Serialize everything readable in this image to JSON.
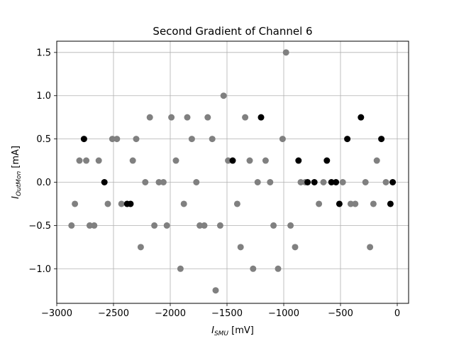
{
  "chart_data": {
    "type": "scatter",
    "title": "Second Gradient of Channel 6",
    "xlabel": {
      "main": "I",
      "sub": "SMU",
      "unit": " [mV]"
    },
    "ylabel": {
      "main": "I",
      "sub": "OutMon",
      "unit": " [mA]"
    },
    "xlim": [
      -3000,
      100
    ],
    "ylim": [
      -1.4,
      1.63
    ],
    "xticks": [
      -3000,
      -2500,
      -2000,
      -1500,
      -1000,
      -500,
      0
    ],
    "xtick_labels": [
      "−3000",
      "−2500",
      "−2000",
      "−1500",
      "−1000",
      "−500",
      "0"
    ],
    "yticks": [
      -1.0,
      -0.5,
      0.0,
      0.5,
      1.0,
      1.5
    ],
    "ytick_labels": [
      "−1.0",
      "−0.5",
      "0.0",
      "0.5",
      "1.0",
      "1.5"
    ],
    "grid": true,
    "colors": {
      "gray": "#808080",
      "black": "#000000",
      "grid": "#b0b0b0"
    },
    "series": [
      {
        "color": "#808080",
        "points": [
          [
            -2870,
            -0.5
          ],
          [
            -2840,
            -0.25
          ],
          [
            -2800,
            0.25
          ],
          [
            -2740,
            0.25
          ],
          [
            -2710,
            -0.5
          ],
          [
            -2670,
            -0.5
          ],
          [
            -2630,
            0.25
          ],
          [
            -2550,
            -0.25
          ],
          [
            -2510,
            0.5
          ],
          [
            -2470,
            0.5
          ],
          [
            -2430,
            -0.25
          ],
          [
            -2330,
            0.25
          ],
          [
            -2300,
            0.5
          ],
          [
            -2260,
            -0.75
          ],
          [
            -2220,
            0.0
          ],
          [
            -2180,
            0.75
          ],
          [
            -2140,
            -0.5
          ],
          [
            -2100,
            0.0
          ],
          [
            -2060,
            0.0
          ],
          [
            -2030,
            -0.5
          ],
          [
            -1990,
            0.75
          ],
          [
            -1950,
            0.25
          ],
          [
            -1910,
            -1.0
          ],
          [
            -1880,
            -0.25
          ],
          [
            -1850,
            0.75
          ],
          [
            -1810,
            0.5
          ],
          [
            -1770,
            0.0
          ],
          [
            -1740,
            -0.5
          ],
          [
            -1700,
            -0.5
          ],
          [
            -1670,
            0.75
          ],
          [
            -1630,
            0.5
          ],
          [
            -1600,
            -1.25
          ],
          [
            -1560,
            -0.5
          ],
          [
            -1530,
            1.0
          ],
          [
            -1490,
            0.25
          ],
          [
            -1410,
            -0.25
          ],
          [
            -1380,
            -0.75
          ],
          [
            -1340,
            0.75
          ],
          [
            -1300,
            0.25
          ],
          [
            -1270,
            -1.0
          ],
          [
            -1230,
            0.0
          ],
          [
            -1160,
            0.25
          ],
          [
            -1120,
            0.0
          ],
          [
            -1090,
            -0.5
          ],
          [
            -1050,
            -1.0
          ],
          [
            -1010,
            0.5
          ],
          [
            -980,
            1.5
          ],
          [
            -940,
            -0.5
          ],
          [
            -900,
            -0.75
          ],
          [
            -850,
            0.0
          ],
          [
            -810,
            0.0
          ],
          [
            -690,
            -0.25
          ],
          [
            -650,
            0.0
          ],
          [
            -480,
            0.0
          ],
          [
            -410,
            -0.25
          ],
          [
            -370,
            -0.25
          ],
          [
            -280,
            0.0
          ],
          [
            -240,
            -0.75
          ],
          [
            -210,
            -0.25
          ],
          [
            -180,
            0.25
          ],
          [
            -100,
            0.0
          ]
        ]
      },
      {
        "color": "#000000",
        "points": [
          [
            -2760,
            0.5
          ],
          [
            -2580,
            0.0
          ],
          [
            -2380,
            -0.25
          ],
          [
            -2350,
            -0.25
          ],
          [
            -1450,
            0.25
          ],
          [
            -1200,
            0.75
          ],
          [
            -870,
            0.25
          ],
          [
            -790,
            0.0
          ],
          [
            -730,
            0.0
          ],
          [
            -620,
            0.25
          ],
          [
            -580,
            0.0
          ],
          [
            -540,
            0.0
          ],
          [
            -510,
            -0.25
          ],
          [
            -440,
            0.5
          ],
          [
            -320,
            0.75
          ],
          [
            -140,
            0.5
          ],
          [
            -60,
            -0.25
          ],
          [
            -40,
            0.0
          ]
        ]
      }
    ]
  }
}
